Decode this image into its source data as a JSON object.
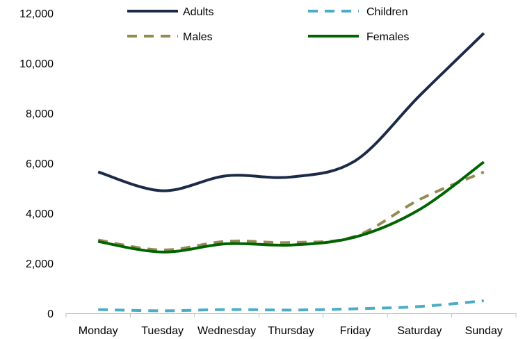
{
  "chart_data": {
    "type": "line",
    "title": "",
    "xlabel": "",
    "ylabel": "",
    "categories": [
      "Monday",
      "Tuesday",
      "Wednesday",
      "Thursday",
      "Friday",
      "Saturday",
      "Sunday"
    ],
    "ylim": [
      0,
      12000
    ],
    "yticks": [
      0,
      2000,
      4000,
      6000,
      8000,
      10000,
      12000
    ],
    "ytick_labels": [
      "0",
      "2,000",
      "4,000",
      "6,000",
      "8,000",
      "10,000",
      "12,000"
    ],
    "grid": false,
    "legend_position": "top",
    "series": [
      {
        "name": "Adults",
        "values": [
          5650,
          4900,
          5500,
          5450,
          6100,
          8700,
          11200
        ],
        "color": "#1b2a47",
        "dash": "solid"
      },
      {
        "name": "Children",
        "values": [
          150,
          100,
          150,
          130,
          180,
          270,
          500
        ],
        "color": "#4bacc6",
        "dash": "dashed"
      },
      {
        "name": "Males",
        "values": [
          2930,
          2530,
          2880,
          2830,
          3080,
          4550,
          5650
        ],
        "color": "#948a54",
        "dash": "dashed"
      },
      {
        "name": "Females",
        "values": [
          2870,
          2450,
          2780,
          2730,
          3050,
          4150,
          6050
        ],
        "color": "#006400",
        "dash": "solid"
      }
    ]
  }
}
